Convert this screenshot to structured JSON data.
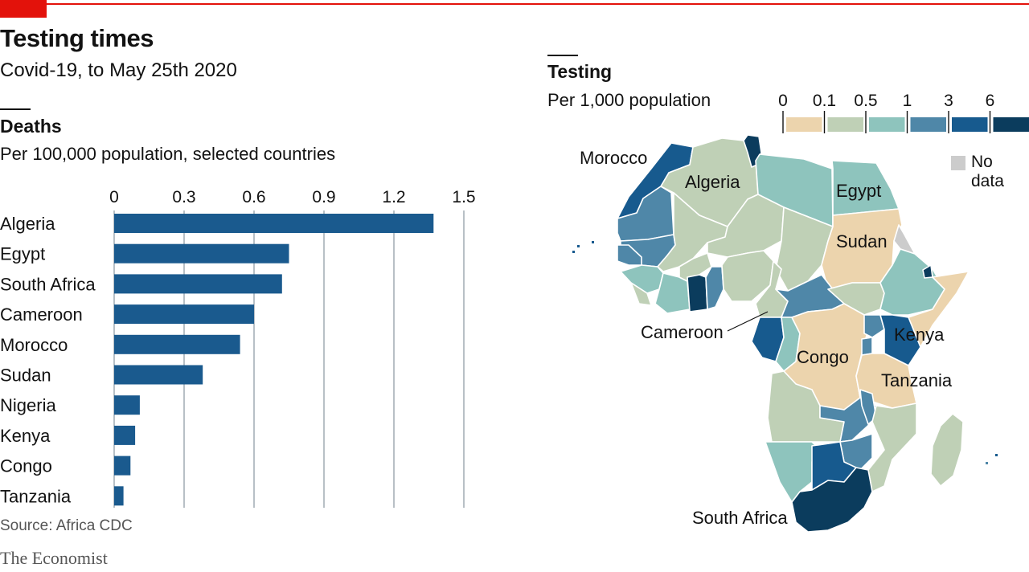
{
  "header": {
    "title": "Testing times",
    "subtitle": "Covid-19, to May 25th 2020"
  },
  "left_panel": {
    "title": "Deaths",
    "subtitle": "Per 100,000 population, selected countries"
  },
  "right_panel": {
    "title": "Testing",
    "subtitle": "Per 1,000 population",
    "no_data_label": "No data"
  },
  "footer": {
    "source": "Source: Africa CDC",
    "brand": "The Economist"
  },
  "colors": {
    "brand_red": "#e3120b",
    "bar": "#1a5a8e",
    "gridline": "#9aa5ad",
    "no_data": "#cccccc"
  },
  "chart_data": [
    {
      "type": "bar",
      "orientation": "horizontal",
      "title": "Deaths",
      "subtitle": "Per 100,000 population, selected countries",
      "categories": [
        "Algeria",
        "Egypt",
        "South Africa",
        "Cameroon",
        "Morocco",
        "Sudan",
        "Nigeria",
        "Kenya",
        "Congo",
        "Tanzania"
      ],
      "values": [
        1.37,
        0.75,
        0.72,
        0.6,
        0.54,
        0.38,
        0.11,
        0.09,
        0.07,
        0.04
      ],
      "ticks": [
        0,
        0.3,
        0.6,
        0.9,
        1.2,
        1.5
      ],
      "tick_labels": [
        "0",
        "0.3",
        "0.6",
        "0.9",
        "1.2",
        "1.5"
      ],
      "xlim": [
        0,
        1.5
      ],
      "grid": true
    },
    {
      "type": "choropleth",
      "title": "Testing",
      "subtitle": "Per 1,000 population",
      "legend": {
        "tick_labels": [
          "0",
          "0.1",
          "0.5",
          "1",
          "3",
          "6"
        ],
        "bins": [
          {
            "from": 0,
            "to": 0.1,
            "color": "#ecd4ad"
          },
          {
            "from": 0.1,
            "to": 0.5,
            "color": "#bfd0b6"
          },
          {
            "from": 0.5,
            "to": 1,
            "color": "#8ec4bd"
          },
          {
            "from": 1,
            "to": 3,
            "color": "#4f87a8"
          },
          {
            "from": 3,
            "to": 6,
            "color": "#175a8e"
          },
          {
            "from": 6,
            "to": null,
            "color": "#0b3c5d"
          }
        ],
        "no_data_color": "#cccccc",
        "no_data_label": "No data"
      },
      "labels": [
        "Morocco",
        "Algeria",
        "Egypt",
        "Sudan",
        "Cameroon",
        "Kenya",
        "Congo",
        "Tanzania",
        "South Africa"
      ]
    }
  ]
}
